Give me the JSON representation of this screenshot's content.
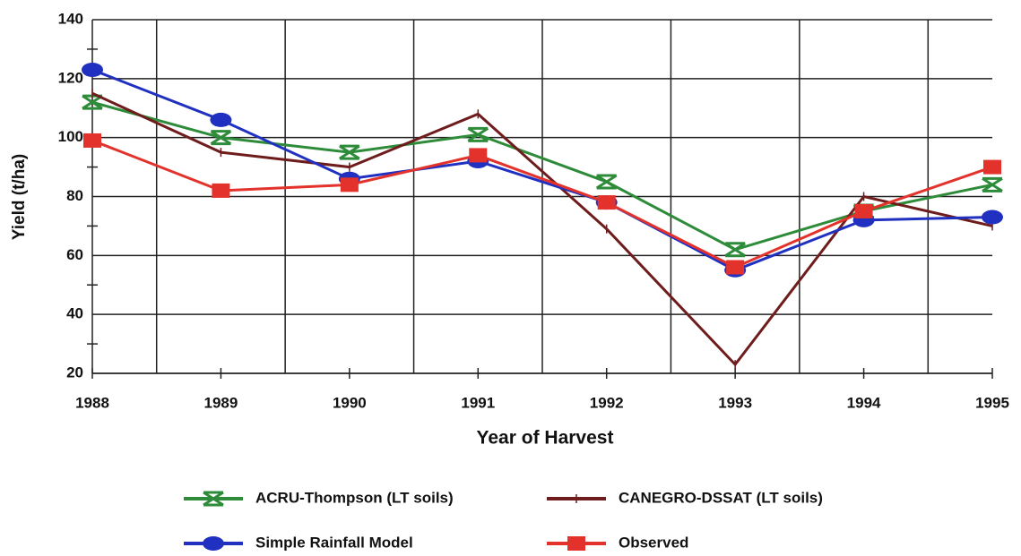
{
  "chart_data": {
    "type": "line",
    "xlabel": "Year of Harvest",
    "ylabel": "Yield (t/ha)",
    "categories": [
      "1988",
      "1989",
      "1990",
      "1991",
      "1992",
      "1993",
      "1994",
      "1995"
    ],
    "ylim": [
      20,
      140
    ],
    "yticks": [
      20,
      40,
      60,
      80,
      100,
      120,
      140
    ],
    "grid": true,
    "series": [
      {
        "name": "ACRU-Thompson (LT soils)",
        "color": "#2e8b3a",
        "marker": "x",
        "values": [
          112,
          100,
          95,
          101,
          85,
          62,
          75,
          84
        ]
      },
      {
        "name": "CANEGRO-DSSAT (LT soils)",
        "color": "#6e1c1c",
        "marker": "tick",
        "values": [
          115,
          95,
          90,
          108,
          69,
          23,
          80,
          70
        ]
      },
      {
        "name": "Simple Rainfall Model",
        "color": "#2030c0",
        "marker": "circle",
        "values": [
          123,
          106,
          86,
          92,
          78,
          55,
          72,
          73
        ]
      },
      {
        "name": "Observed",
        "color": "#e3322b",
        "marker": "square",
        "values": [
          99,
          82,
          84,
          94,
          78,
          56,
          75,
          90
        ]
      }
    ]
  }
}
